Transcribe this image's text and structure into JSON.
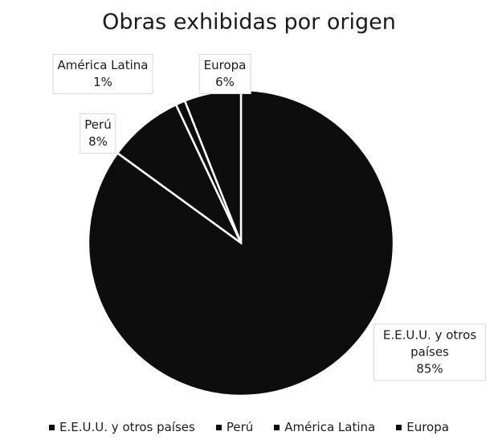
{
  "chart_data": {
    "type": "pie",
    "title": "Obras exhibidas por origen",
    "categories": [
      "E.E.U.U. y otros países",
      "Perú",
      "América Latina",
      "Europa"
    ],
    "values": [
      85,
      8,
      1,
      6
    ],
    "value_labels": [
      "85%",
      "8%",
      "1%",
      "6%"
    ],
    "color": "#0d0d0d",
    "legend": "bottom"
  }
}
